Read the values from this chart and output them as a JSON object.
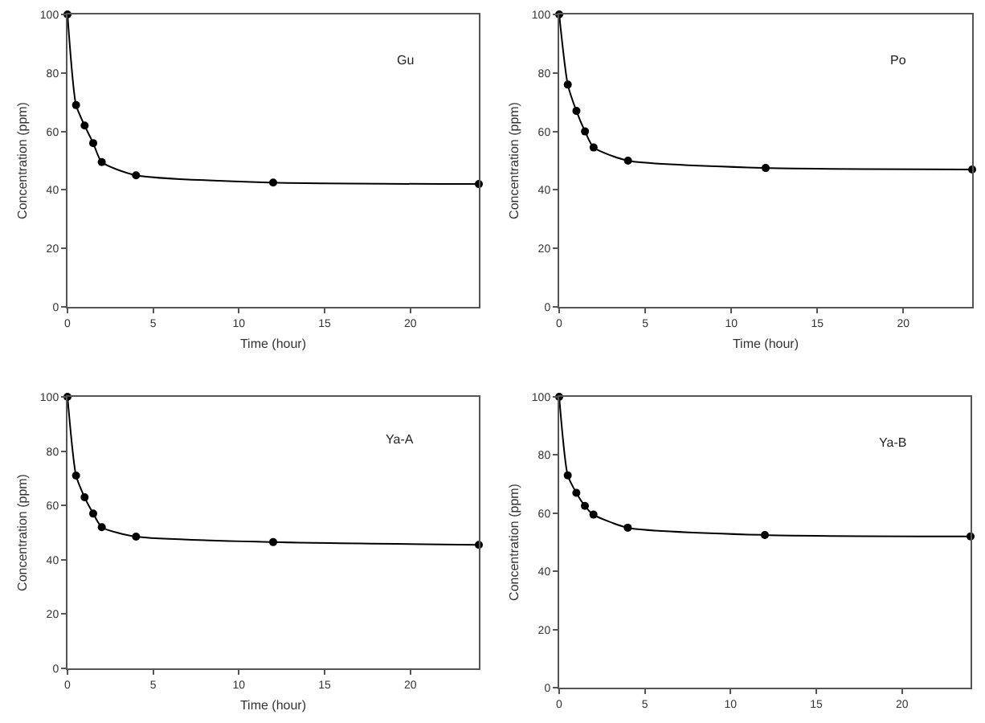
{
  "chart_data": [
    {
      "type": "line",
      "ylabel": "Concentration (ppm)",
      "xlabel": "Time (hour)",
      "annotations": [
        "Gu"
      ],
      "x": [
        0,
        0.5,
        1,
        1.5,
        2,
        4,
        12,
        24
      ],
      "series": [
        {
          "color": "#000000",
          "values": [
            100,
            69,
            62,
            56,
            49.5,
            45,
            42.5,
            42
          ]
        }
      ],
      "xlim": [
        0,
        24
      ],
      "xticks": [
        0,
        5,
        10,
        15,
        20
      ],
      "ylim": [
        0,
        100
      ],
      "yticks": [
        0,
        20,
        40,
        60,
        80,
        100
      ],
      "marker": "circle",
      "line_style": "solid"
    },
    {
      "type": "line",
      "ylabel": "Concentration (ppm)",
      "xlabel": "Time (hour)",
      "annotations": [
        "Po"
      ],
      "x": [
        0,
        0.5,
        1,
        1.5,
        2,
        4,
        12,
        24
      ],
      "series": [
        {
          "color": "#000000",
          "values": [
            100,
            76,
            67,
            60,
            54.5,
            50,
            47.5,
            47
          ]
        }
      ],
      "xlim": [
        0,
        24
      ],
      "xticks": [
        0,
        5,
        10,
        15,
        20
      ],
      "ylim": [
        0,
        100
      ],
      "yticks": [
        0,
        20,
        40,
        60,
        80,
        100
      ],
      "marker": "circle",
      "line_style": "solid"
    },
    {
      "type": "line",
      "ylabel": "Concentration (ppm)",
      "xlabel": "Time (hour)",
      "annotations": [
        "Ya-A"
      ],
      "x": [
        0,
        0.5,
        1,
        1.5,
        2,
        4,
        12,
        24
      ],
      "series": [
        {
          "color": "#000000",
          "values": [
            100,
            71,
            63,
            57,
            52,
            48.5,
            46.5,
            45.5
          ]
        }
      ],
      "xlim": [
        0,
        24
      ],
      "xticks": [
        0,
        5,
        10,
        15,
        20
      ],
      "ylim": [
        0,
        100
      ],
      "yticks": [
        0,
        20,
        40,
        60,
        80,
        100
      ],
      "marker": "circle",
      "line_style": "solid"
    },
    {
      "type": "line",
      "ylabel": "Concentration (ppm)",
      "annotations": [
        "Ya-B"
      ],
      "x": [
        0,
        0.5,
        1,
        1.5,
        2,
        4,
        12,
        24
      ],
      "series": [
        {
          "color": "#000000",
          "values": [
            100,
            73,
            67,
            62.5,
            59.5,
            55,
            52.5,
            52
          ]
        }
      ],
      "xlim": [
        0,
        24
      ],
      "xticks": [
        0,
        5,
        10,
        15,
        20
      ],
      "ylim": [
        0,
        100
      ],
      "yticks": [
        0,
        20,
        40,
        60,
        80,
        100
      ],
      "marker": "circle",
      "line_style": "solid"
    }
  ]
}
